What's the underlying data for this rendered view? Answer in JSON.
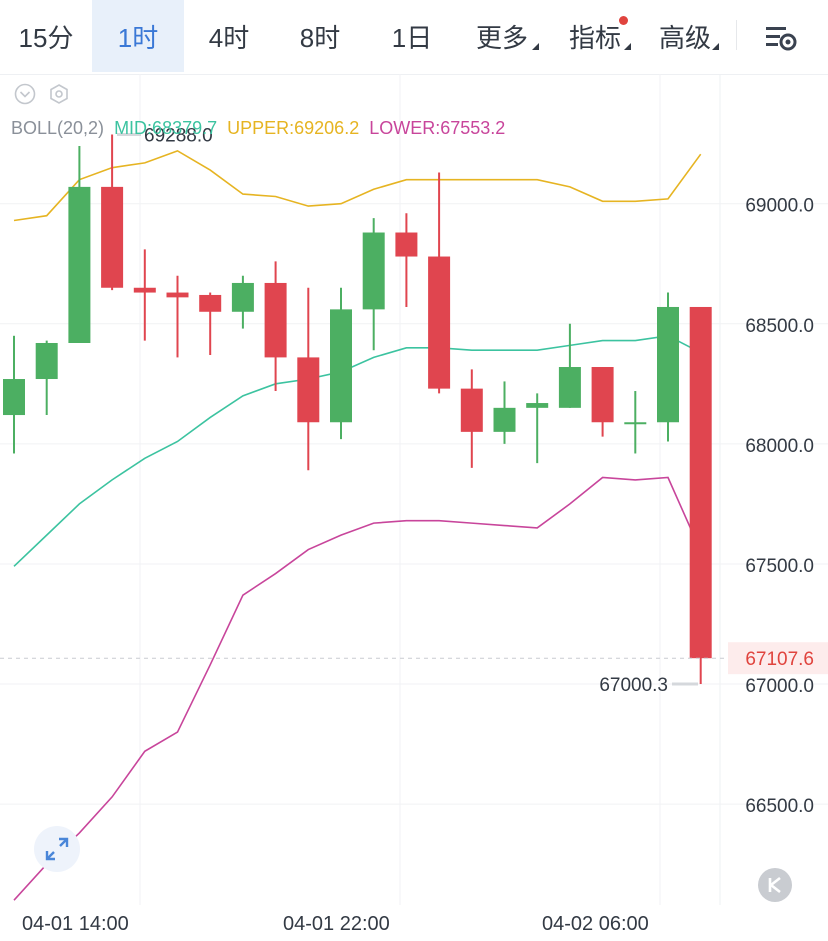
{
  "tabs": [
    {
      "label": "15分"
    },
    {
      "label": "1时",
      "active": true
    },
    {
      "label": "4时"
    },
    {
      "label": "8时"
    },
    {
      "label": "1日"
    },
    {
      "label": "更多",
      "dropdown": true
    },
    {
      "label": "指标",
      "dropdown": true,
      "badge": "red-dot"
    },
    {
      "label": "高级",
      "dropdown": true
    }
  ],
  "toolbar": {
    "settings_icon": "chart-settings-icon"
  },
  "indicator": {
    "name": "BOLL(20,2)",
    "mid_label": "MID:68379.7",
    "upper_label": "UPPER:69206.2",
    "lower_label": "LOWER:67553.2",
    "colors": {
      "name": "#8a9099",
      "mid": "#3cc3a0",
      "upper": "#e6b422",
      "lower": "#c8459b"
    },
    "icons": [
      "collapse-chevron-icon",
      "indicator-settings-icon"
    ]
  },
  "price_axis": {
    "ticks": [
      "69000.0",
      "68500.0",
      "68000.0",
      "67500.0",
      "67000.0",
      "66500.0"
    ]
  },
  "current_price": {
    "label": "67107.6",
    "value": 67107.6,
    "color": "#e0443e"
  },
  "annotations": {
    "high_label": "69288.0",
    "low_label": "67000.3"
  },
  "time_axis": [
    "04-01 14:00",
    "04-01 22:00",
    "04-02 06:00"
  ],
  "colors": {
    "up": "#4caf62",
    "down": "#e0454f",
    "grid": "#f1f2f4",
    "text": "#333a44",
    "accent": "#3a78d6"
  },
  "chart_data": {
    "type": "candlestick",
    "ylim": [
      66080,
      69540
    ],
    "candles": [
      {
        "o": 68120,
        "h": 68450,
        "l": 67960,
        "c": 68270
      },
      {
        "o": 68270,
        "h": 68430,
        "l": 68120,
        "c": 68420
      },
      {
        "o": 68420,
        "h": 69240,
        "l": 68420,
        "c": 69070
      },
      {
        "o": 69070,
        "h": 69288,
        "l": 68640,
        "c": 68650
      },
      {
        "o": 68650,
        "h": 68810,
        "l": 68430,
        "c": 68630
      },
      {
        "o": 68630,
        "h": 68700,
        "l": 68360,
        "c": 68610
      },
      {
        "o": 68620,
        "h": 68630,
        "l": 68370,
        "c": 68550
      },
      {
        "o": 68550,
        "h": 68700,
        "l": 68480,
        "c": 68670
      },
      {
        "o": 68670,
        "h": 68760,
        "l": 68220,
        "c": 68360
      },
      {
        "o": 68360,
        "h": 68650,
        "l": 67890,
        "c": 68090
      },
      {
        "o": 68090,
        "h": 68650,
        "l": 68020,
        "c": 68560
      },
      {
        "o": 68560,
        "h": 68940,
        "l": 68390,
        "c": 68880
      },
      {
        "o": 68880,
        "h": 68960,
        "l": 68570,
        "c": 68780
      },
      {
        "o": 68780,
        "h": 69130,
        "l": 68210,
        "c": 68230
      },
      {
        "o": 68230,
        "h": 68310,
        "l": 67900,
        "c": 68050
      },
      {
        "o": 68050,
        "h": 68260,
        "l": 68000,
        "c": 68150
      },
      {
        "o": 68150,
        "h": 68210,
        "l": 67920,
        "c": 68170
      },
      {
        "o": 68150,
        "h": 68500,
        "l": 68150,
        "c": 68320
      },
      {
        "o": 68320,
        "h": 68320,
        "l": 68030,
        "c": 68090
      },
      {
        "o": 68090,
        "h": 68220,
        "l": 67960,
        "c": 68090
      },
      {
        "o": 68090,
        "h": 68630,
        "l": 68010,
        "c": 68570
      },
      {
        "o": 68570,
        "h": 68570,
        "l": 67000.3,
        "c": 67107.6
      }
    ],
    "boll_upper": [
      68930,
      68950,
      69100,
      69150,
      69170,
      69220,
      69140,
      69040,
      69030,
      68990,
      69000,
      69060,
      69100,
      69100,
      69100,
      69100,
      69100,
      69070,
      69010,
      69010,
      69020,
      69206.2
    ],
    "boll_mid": [
      67490,
      67620,
      67750,
      67850,
      67940,
      68010,
      68110,
      68200,
      68250,
      68270,
      68300,
      68360,
      68400,
      68400,
      68390,
      68390,
      68390,
      68410,
      68430,
      68430,
      68450,
      68379.7
    ],
    "boll_lower": [
      66100,
      66250,
      66380,
      66530,
      66720,
      66800,
      67080,
      67370,
      67460,
      67560,
      67620,
      67670,
      67680,
      67680,
      67670,
      67660,
      67650,
      67750,
      67860,
      67850,
      67860,
      67553.2
    ]
  }
}
